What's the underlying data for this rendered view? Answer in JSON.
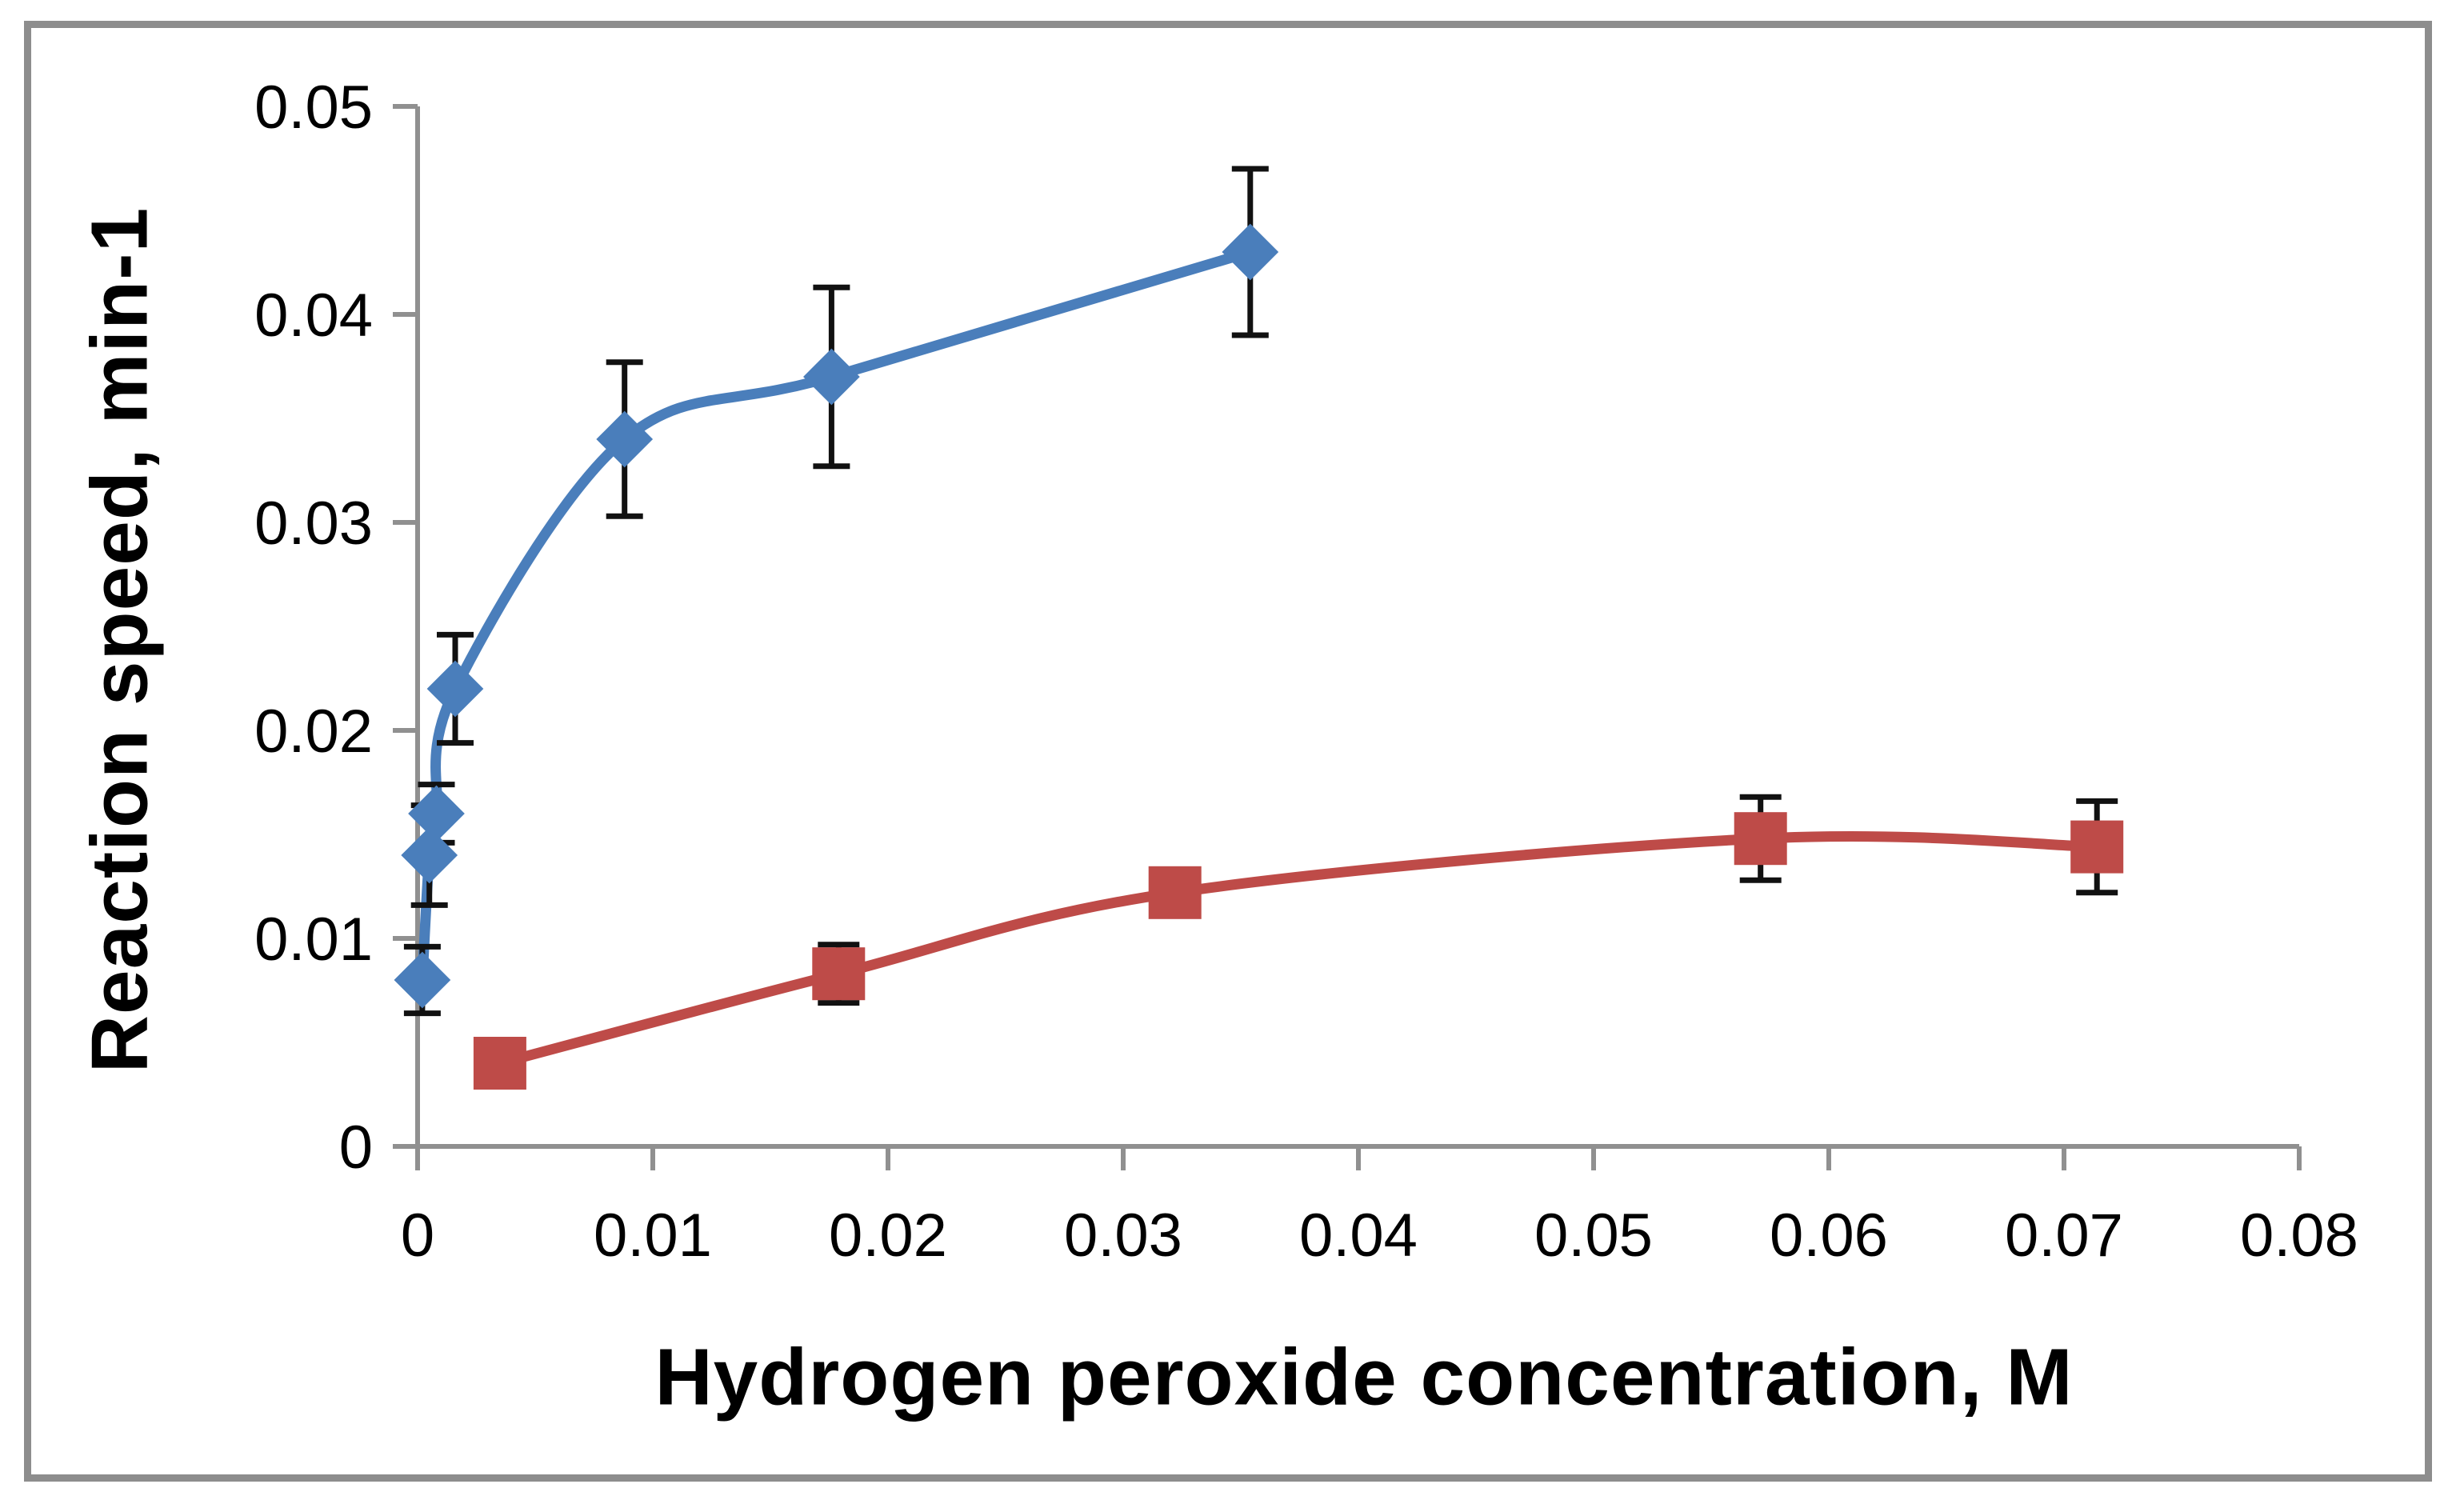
{
  "chart": {
    "background": "#ffffff",
    "border_color": "#8d8d8d",
    "axis_color": "#909090",
    "error_bar_color": "#111111",
    "text_color": "#000000"
  },
  "chart_data": {
    "type": "line",
    "title": "",
    "xlabel": "Hydrogen peroxide concentration, M",
    "ylabel": "Reaction speed, min-1",
    "xlim": [
      0,
      0.08
    ],
    "ylim": [
      0,
      0.05
    ],
    "grid": false,
    "legend": "none",
    "x_ticks": [
      0,
      0.01,
      0.02,
      0.03,
      0.04,
      0.05,
      0.06,
      0.07,
      0.08
    ],
    "x_tick_labels": [
      "0",
      "0.01",
      "0.02",
      "0.03",
      "0.04",
      "0.05",
      "0.06",
      "0.07",
      "0.08"
    ],
    "y_ticks": [
      0,
      0.01,
      0.02,
      0.03,
      0.04,
      0.05
    ],
    "y_tick_labels": [
      "0",
      "0.01",
      "0.02",
      "0.03",
      "0.04",
      "0.05"
    ],
    "series": [
      {
        "name": "blue-diamond-series",
        "marker": "diamond",
        "color": "#4A7EBB",
        "smooth": true,
        "points": [
          {
            "x": 0.0002,
            "y": 0.008,
            "yerr": 0.0016
          },
          {
            "x": 0.0005,
            "y": 0.014,
            "yerr": 0.0024
          },
          {
            "x": 0.0008,
            "y": 0.016,
            "yerr": 0.0014
          },
          {
            "x": 0.0016,
            "y": 0.022,
            "yerr": 0.0026
          },
          {
            "x": 0.0088,
            "y": 0.034,
            "yerr": 0.0037
          },
          {
            "x": 0.0176,
            "y": 0.037,
            "yerr": 0.0043
          },
          {
            "x": 0.0354,
            "y": 0.043,
            "yerr": 0.004
          }
        ]
      },
      {
        "name": "red-square-series",
        "marker": "square",
        "color": "#BE4B48",
        "smooth": true,
        "points": [
          {
            "x": 0.0035,
            "y": 0.004,
            "yerr": 0
          },
          {
            "x": 0.0179,
            "y": 0.0083,
            "yerr": 0.0014
          },
          {
            "x": 0.0322,
            "y": 0.0122,
            "yerr": 0
          },
          {
            "x": 0.0571,
            "y": 0.0148,
            "yerr": 0.002
          },
          {
            "x": 0.0714,
            "y": 0.0144,
            "yerr": 0.0022
          }
        ]
      }
    ]
  }
}
